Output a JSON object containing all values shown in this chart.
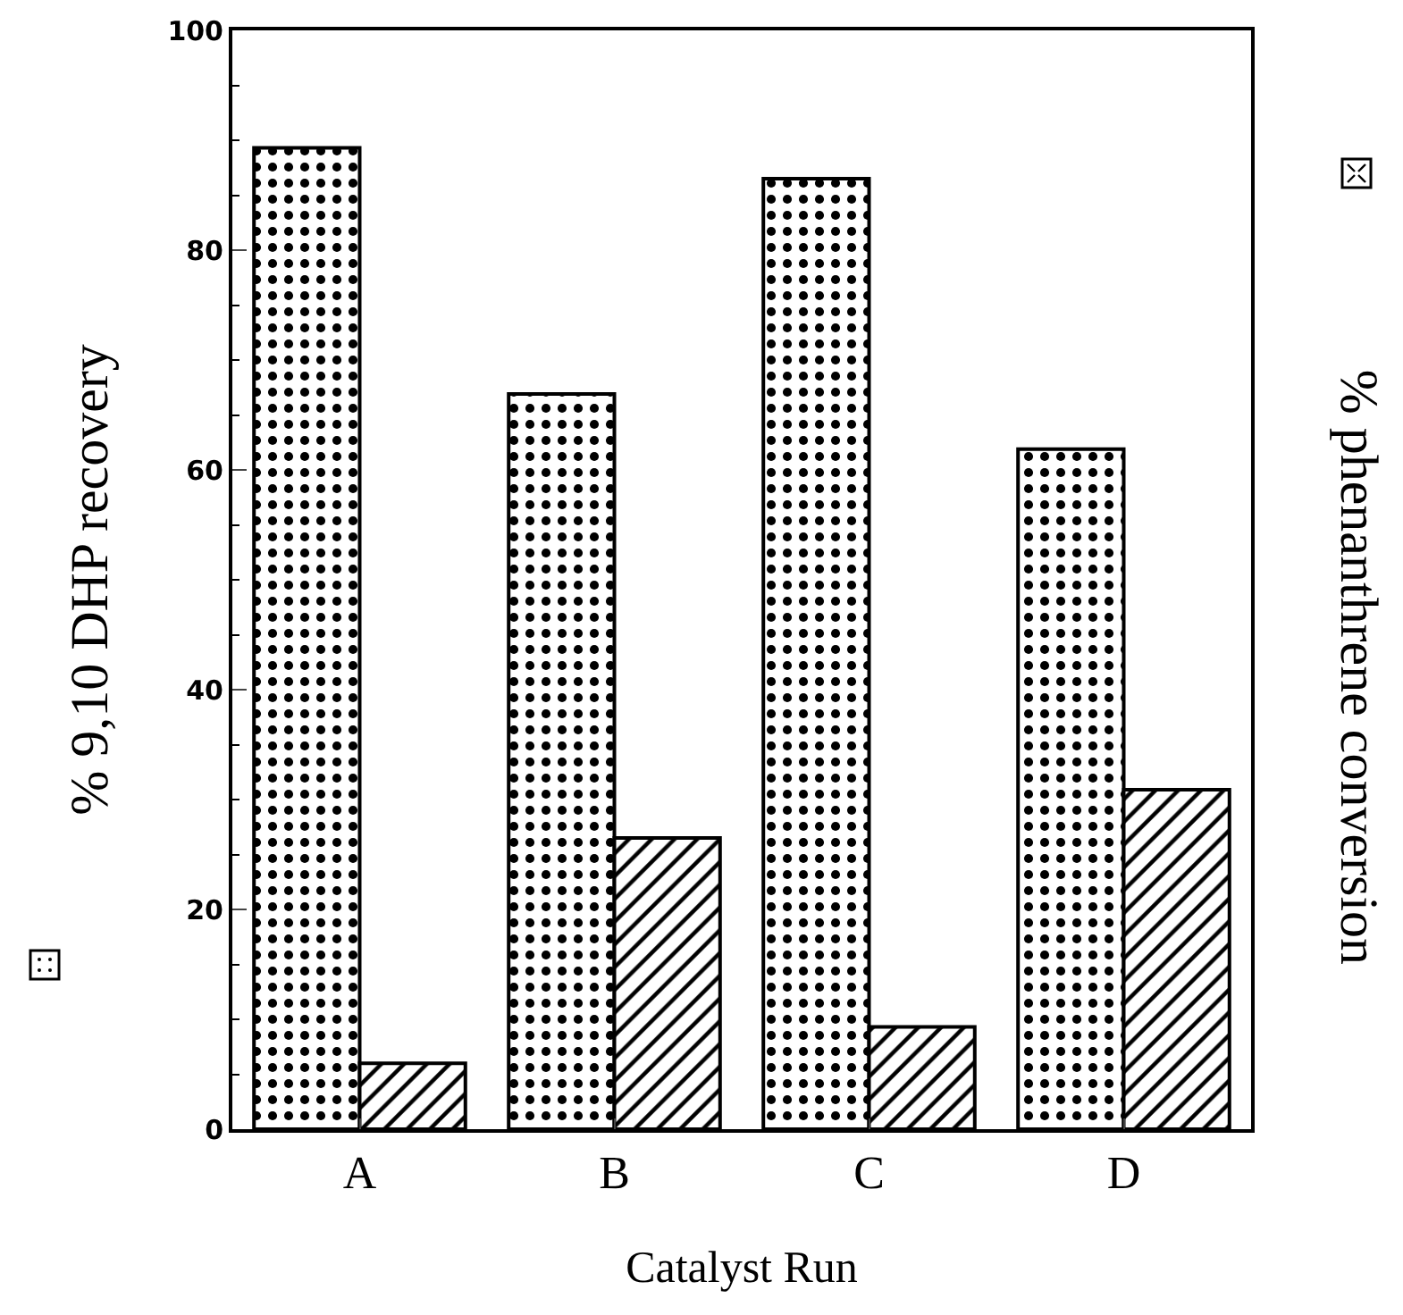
{
  "chart_data": {
    "type": "bar",
    "xlabel": "Catalyst Run",
    "ylabel": "% 9,10 DHP recovery",
    "y2label": "% phenanthrene conversion",
    "categories": [
      "A",
      "B",
      "C",
      "D"
    ],
    "series": [
      {
        "color": "#000000",
        "values": [
          89.3,
          66.9,
          86.5,
          61.9
        ]
      },
      {
        "color": "#000000",
        "values": [
          6.0,
          26.5,
          9.3,
          30.9
        ]
      }
    ],
    "ylim": [
      0,
      100
    ],
    "yticks": [
      0,
      20,
      40,
      60,
      80,
      100
    ]
  }
}
